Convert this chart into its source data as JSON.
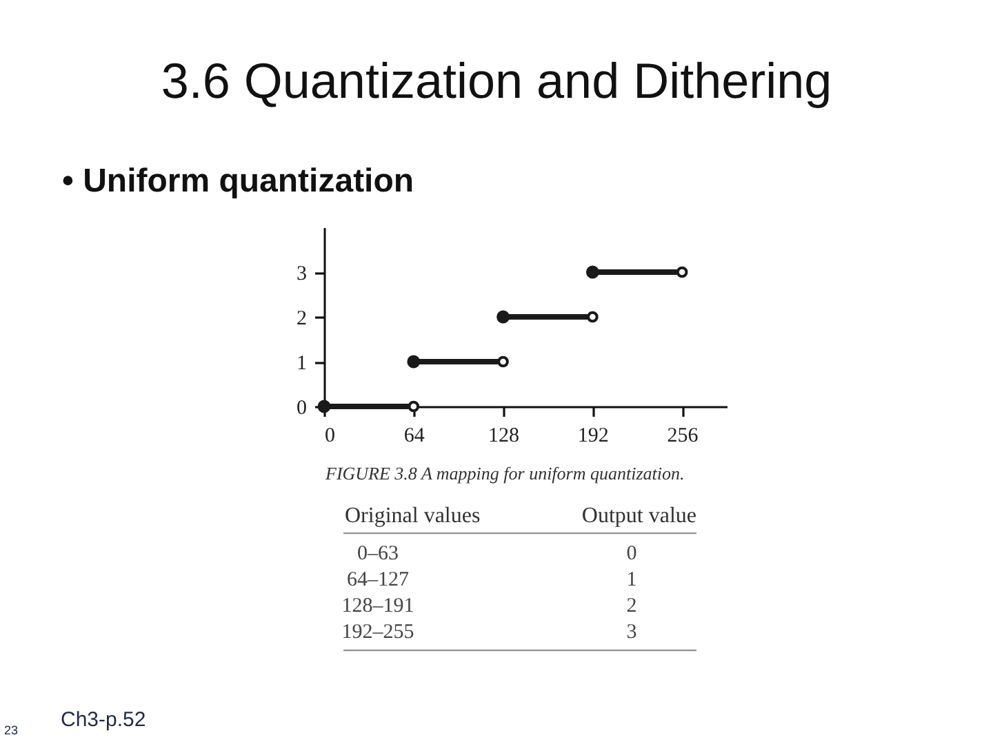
{
  "chart_data": {
    "type": "line",
    "title": "3.6 Quantization and Dithering",
    "subtitle": "• Uniform quantization",
    "series": [
      {
        "x": [
          0,
          64
        ],
        "values": [
          0,
          0
        ],
        "color": "#1a1a1a"
      },
      {
        "x": [
          64,
          128
        ],
        "values": [
          1,
          1
        ],
        "color": "#1a1a1a"
      },
      {
        "x": [
          128,
          192
        ],
        "values": [
          2,
          2
        ],
        "color": "#1a1a1a"
      },
      {
        "x": [
          192,
          256
        ],
        "values": [
          3,
          3
        ],
        "color": "#1a1a1a"
      }
    ],
    "xlim": [
      0,
      288
    ],
    "ylim": [
      0,
      4
    ],
    "xticks": [
      0,
      64,
      128,
      192,
      256
    ],
    "yticks": [
      0,
      1,
      2,
      3
    ],
    "marker": "circle",
    "line_style": "solid",
    "grid": false,
    "annotations": [
      "FIGURE 3.8 A mapping for uniform quantization.",
      "Original values",
      "Output value",
      "0–63",
      "0",
      "64–127",
      "1",
      "128–191",
      "2",
      "192–255",
      "3",
      "Ch3-p.52",
      "23"
    ]
  }
}
